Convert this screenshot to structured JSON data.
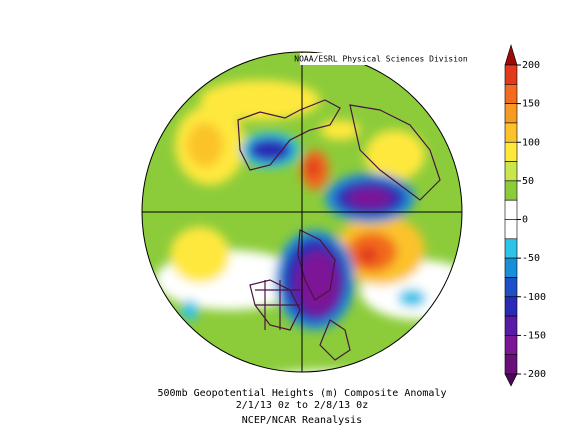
{
  "header": {
    "credit": "NOAA/ESRL Physical Sciences Division"
  },
  "caption": {
    "line1": "500mb Geopotential Heights (m)   Composite Anomaly",
    "line2": "2/1/13 0z  to 2/8/13 0z",
    "line3": "NCEP/NCAR Reanalysis"
  },
  "colorbar": {
    "ticks": [
      200,
      150,
      100,
      50,
      0,
      -50,
      -100,
      -150,
      -200
    ],
    "colors": [
      "#9c0a0a",
      "#e23a1a",
      "#f26b1e",
      "#f79a22",
      "#fbc22c",
      "#ffe83c",
      "#c9e64c",
      "#8ccc3a",
      "#ffffff",
      "#ffffff",
      "#2ec4ea",
      "#1a8fd9",
      "#1f4fc8",
      "#2a2ab4",
      "#5a1aa8",
      "#7b1696",
      "#6a0f7a",
      "#4a0856"
    ]
  }
}
